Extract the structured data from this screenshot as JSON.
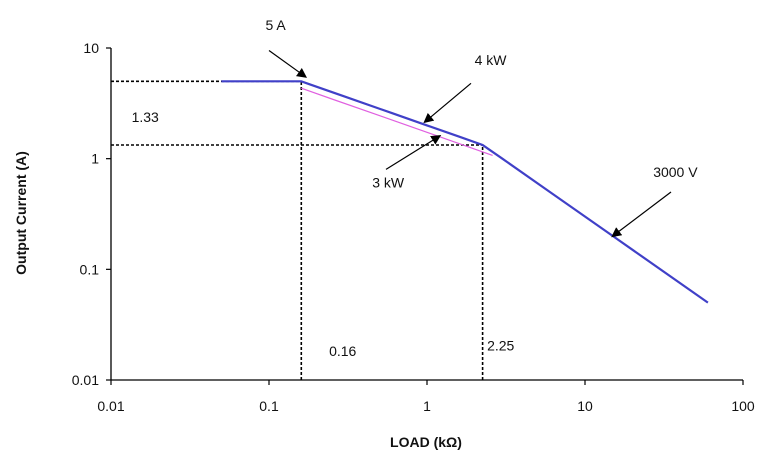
{
  "chart_data": {
    "type": "line",
    "title": "",
    "xlabel": "LOAD (kΩ)",
    "ylabel": "Output Current (A)",
    "x_scale": "log",
    "y_scale": "log",
    "xlim": [
      0.01,
      100
    ],
    "ylim": [
      0.01,
      10
    ],
    "x_ticks": [
      0.01,
      0.1,
      1,
      10,
      100
    ],
    "x_tick_labels": [
      "0.01",
      "0.1",
      "1",
      "10",
      "100"
    ],
    "y_ticks": [
      0.01,
      0.1,
      1,
      10
    ],
    "y_tick_labels": [
      "0.01",
      "0.1",
      "1",
      "10"
    ],
    "grid": false,
    "series": [
      {
        "color": "#4040c8",
        "x": [
          0.05,
          0.16,
          0.18,
          0.3,
          0.6,
          1.0,
          1.6,
          2.25,
          3.0,
          6.0,
          15.0,
          60.0
        ],
        "y": [
          5,
          5,
          4.71,
          3.65,
          2.58,
          2.0,
          1.58,
          1.33,
          1.0,
          0.5,
          0.2,
          0.05
        ]
      },
      {
        "color": "#e060e0",
        "x": [
          0.16,
          0.25,
          0.5,
          1.0,
          2.0,
          2.6
        ],
        "y": [
          4.33,
          3.46,
          2.45,
          1.73,
          1.22,
          1.07
        ]
      }
    ],
    "reference_lines": [
      {
        "points": [
          [
            0.01,
            5
          ],
          [
            0.16,
            5
          ]
        ]
      },
      {
        "points": [
          [
            0.16,
            0.01
          ],
          [
            0.16,
            5
          ]
        ]
      },
      {
        "points": [
          [
            0.01,
            1.33
          ],
          [
            2.25,
            1.33
          ]
        ]
      },
      {
        "points": [
          [
            2.25,
            0.01
          ],
          [
            2.25,
            1.33
          ]
        ]
      }
    ],
    "annotations": [
      {
        "text": "5 A",
        "label_at": [
          0.095,
          14.5
        ],
        "arrow_tail": [
          0.1,
          9.5
        ],
        "arrow_head": [
          0.17,
          5.5
        ]
      },
      {
        "text": "4 kW",
        "label_at": [
          2.0,
          7.0
        ],
        "arrow_tail": [
          1.9,
          4.8
        ],
        "arrow_head": [
          0.97,
          2.15
        ]
      },
      {
        "text": "3 kW",
        "label_at": [
          0.45,
          0.55
        ],
        "arrow_tail": [
          0.55,
          0.8
        ],
        "arrow_head": [
          1.2,
          1.6
        ]
      },
      {
        "text": "3000 V",
        "label_at": [
          27.0,
          0.68
        ],
        "arrow_tail": [
          35.0,
          0.5
        ],
        "arrow_head": [
          15.0,
          0.2
        ]
      },
      {
        "text": "1.33",
        "label_at": [
          0.0135,
          2.15
        ],
        "arrow_tail": null,
        "arrow_head": null
      },
      {
        "text": "0.16",
        "label_at": [
          0.24,
          0.0165
        ],
        "arrow_tail": null,
        "arrow_head": null
      },
      {
        "text": "2.25",
        "label_at": [
          2.4,
          0.0185
        ],
        "arrow_tail": null,
        "arrow_head": null
      }
    ]
  }
}
